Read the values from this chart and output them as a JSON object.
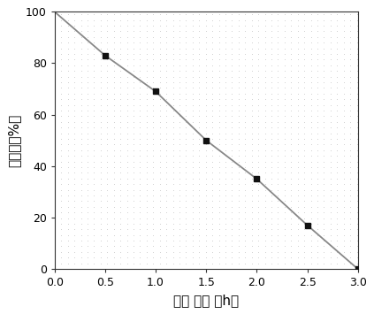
{
  "x_data": [
    0.0,
    0.5,
    1.0,
    1.5,
    2.0,
    2.5,
    3.0
  ],
  "y_data": [
    100,
    83,
    69,
    50,
    35,
    17,
    0
  ],
  "marker_x": [
    0.5,
    1.0,
    1.5,
    2.0,
    2.5,
    3.0
  ],
  "marker_y": [
    83,
    69,
    50,
    35,
    17,
    0
  ],
  "line_color": "#888888",
  "marker_color": "#111111",
  "marker_style": "s",
  "marker_size": 5,
  "xlabel": "光照 时间 （h）",
  "ylabel": "降解率（%）",
  "xlim": [
    0.0,
    3.0
  ],
  "ylim": [
    0,
    100
  ],
  "xticks": [
    0.0,
    0.5,
    1.0,
    1.5,
    2.0,
    2.5,
    3.0
  ],
  "yticks": [
    0,
    20,
    40,
    60,
    80,
    100
  ],
  "background_color": "#ffffff",
  "plot_bg_color": "#ffffff",
  "dot_color": "#cccccc",
  "dot_spacing_x": 0.065,
  "dot_spacing_y": 2.2,
  "xlabel_fontsize": 11,
  "ylabel_fontsize": 11,
  "tick_fontsize": 9,
  "linewidth": 1.3
}
